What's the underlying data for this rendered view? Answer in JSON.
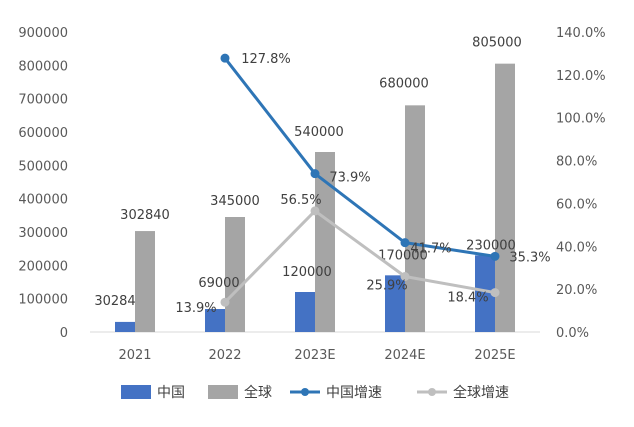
{
  "chart_data": {
    "type": "bar",
    "categories": [
      "2021",
      "2022",
      "2023E",
      "2024E",
      "2025E"
    ],
    "series": [
      {
        "name": "中国",
        "kind": "bar",
        "axis": "left",
        "color": "#4472C4",
        "values": [
          30284,
          69000,
          120000,
          170000,
          230000
        ],
        "labels": [
          "30284",
          "69000",
          "120000",
          "170000",
          "230000"
        ]
      },
      {
        "name": "全球",
        "kind": "bar",
        "axis": "left",
        "color": "#A5A5A5",
        "values": [
          302840,
          345000,
          540000,
          680000,
          805000
        ],
        "labels": [
          "302840",
          "345000",
          "540000",
          "680000",
          "805000"
        ]
      },
      {
        "name": "中国增速",
        "kind": "line",
        "axis": "right",
        "color": "#2E75B6",
        "values": [
          null,
          127.8,
          73.9,
          41.7,
          35.3
        ],
        "labels": [
          null,
          "127.8%",
          "73.9%",
          "41.7%",
          "35.3%"
        ]
      },
      {
        "name": "全球增速",
        "kind": "line",
        "axis": "right",
        "color": "#BFBFBF",
        "values": [
          null,
          13.9,
          56.5,
          25.9,
          18.4
        ],
        "labels": [
          null,
          "13.9%",
          "56.5%",
          "25.9%",
          "18.4%"
        ]
      }
    ],
    "y_left": {
      "min": 0,
      "max": 900000,
      "ticks": [
        "0",
        "100000",
        "200000",
        "300000",
        "400000",
        "500000",
        "600000",
        "700000",
        "800000",
        "900000"
      ]
    },
    "y_right": {
      "min": 0,
      "max": 140,
      "ticks": [
        "0.0%",
        "20.0%",
        "40.0%",
        "60.0%",
        "80.0%",
        "100.0%",
        "120.0%",
        "140.0%"
      ]
    },
    "grid": false,
    "legend_position": "bottom"
  }
}
